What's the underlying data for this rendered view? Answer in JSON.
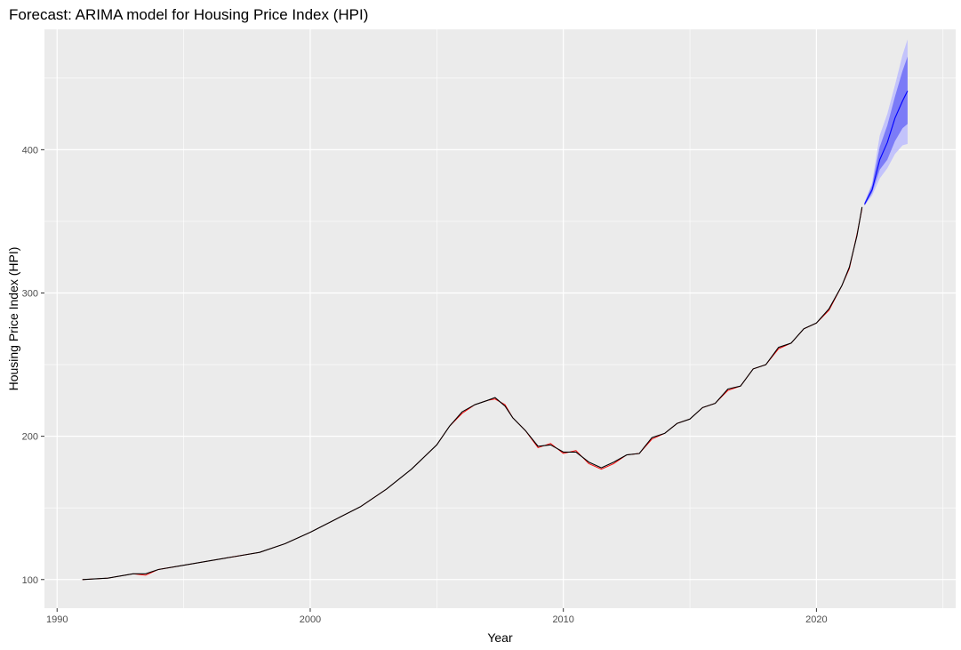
{
  "chart_data": {
    "type": "line",
    "title": "Forecast: ARIMA model for Housing Price Index (HPI)",
    "xlabel": "Year",
    "ylabel": "Housing Price Index (HPI)",
    "xlim": [
      1989.5,
      2025.5
    ],
    "ylim": [
      80,
      484
    ],
    "x_ticks": [
      1990,
      2000,
      2010,
      2020
    ],
    "y_ticks": [
      100,
      200,
      300,
      400
    ],
    "grid": true,
    "legend": "none",
    "colors": {
      "panel": "#ebebeb",
      "grid_major": "#ffffff",
      "actual": "#000000",
      "fitted": "#ff0000",
      "forecast": "#0000ff",
      "band80": "#7b7bf7",
      "band95": "#c3c3fb"
    },
    "series": [
      {
        "role": "actual",
        "x": [
          1991.0,
          1992.0,
          1993.0,
          1993.5,
          1994.0,
          1995.0,
          1996.0,
          1997.0,
          1998.0,
          1999.0,
          2000.0,
          2001.0,
          2002.0,
          2003.0,
          2004.0,
          2005.0,
          2005.5,
          2006.0,
          2006.5,
          2007.0,
          2007.3,
          2007.7,
          2008.0,
          2008.5,
          2009.0,
          2009.5,
          2010.0,
          2010.5,
          2011.0,
          2011.5,
          2012.0,
          2012.5,
          2013.0,
          2013.5,
          2014.0,
          2014.5,
          2015.0,
          2015.5,
          2016.0,
          2016.5,
          2017.0,
          2017.5,
          2018.0,
          2018.5,
          2019.0,
          2019.5,
          2020.0,
          2020.5,
          2021.0,
          2021.3,
          2021.6,
          2021.8
        ],
        "values": [
          100,
          101,
          104,
          104,
          107,
          110,
          113,
          116,
          119,
          125,
          133,
          142,
          151,
          163,
          177,
          194,
          207,
          217,
          222,
          225,
          227,
          221,
          213,
          204,
          193,
          194,
          189,
          189,
          182,
          178,
          182,
          187,
          188,
          199,
          202,
          209,
          212,
          220,
          223,
          233,
          235,
          247,
          250,
          262,
          265,
          275,
          279,
          289,
          305,
          318,
          340,
          360
        ]
      },
      {
        "role": "fitted",
        "x": [
          1991.0,
          1992.0,
          1993.0,
          1993.5,
          1994.0,
          1995.0,
          1996.0,
          1997.0,
          1998.0,
          1999.0,
          2000.0,
          2001.0,
          2002.0,
          2003.0,
          2004.0,
          2005.0,
          2005.5,
          2006.0,
          2006.5,
          2007.0,
          2007.3,
          2007.7,
          2008.0,
          2008.5,
          2009.0,
          2009.5,
          2010.0,
          2010.5,
          2011.0,
          2011.5,
          2012.0,
          2012.5,
          2013.0,
          2013.5,
          2014.0,
          2014.5,
          2015.0,
          2015.5,
          2016.0,
          2016.5,
          2017.0,
          2017.5,
          2018.0,
          2018.5,
          2019.0,
          2019.5,
          2020.0,
          2020.5,
          2021.0,
          2021.3,
          2021.6,
          2021.8
        ],
        "values": [
          100,
          101,
          104,
          103,
          107,
          110,
          113,
          116,
          119,
          125,
          133,
          142,
          151,
          163,
          177,
          194,
          207,
          216,
          222,
          225,
          226,
          222,
          213,
          204,
          192,
          195,
          188,
          190,
          181,
          177,
          181,
          187,
          188,
          198,
          202,
          209,
          212,
          220,
          223,
          232,
          235,
          247,
          250,
          261,
          265,
          275,
          279,
          288,
          305,
          317,
          341,
          359
        ]
      },
      {
        "role": "forecast",
        "x": [
          2021.9,
          2022.2,
          2022.5,
          2022.8,
          2023.1,
          2023.4,
          2023.6
        ],
        "values": [
          362,
          372,
          393,
          405,
          422,
          434,
          441
        ]
      }
    ],
    "bands": [
      {
        "level": "95",
        "x": [
          2021.9,
          2022.2,
          2022.5,
          2022.8,
          2023.1,
          2023.4,
          2023.6
        ],
        "lower": [
          361,
          368,
          380,
          387,
          397,
          403,
          404
        ],
        "upper": [
          363,
          377,
          410,
          425,
          445,
          466,
          477
        ]
      },
      {
        "level": "80",
        "x": [
          2021.9,
          2022.2,
          2022.5,
          2022.8,
          2023.1,
          2023.4,
          2023.6
        ],
        "lower": [
          361,
          370,
          386,
          393,
          406,
          415,
          418
        ],
        "upper": [
          363,
          375,
          402,
          417,
          437,
          455,
          465
        ]
      }
    ]
  }
}
